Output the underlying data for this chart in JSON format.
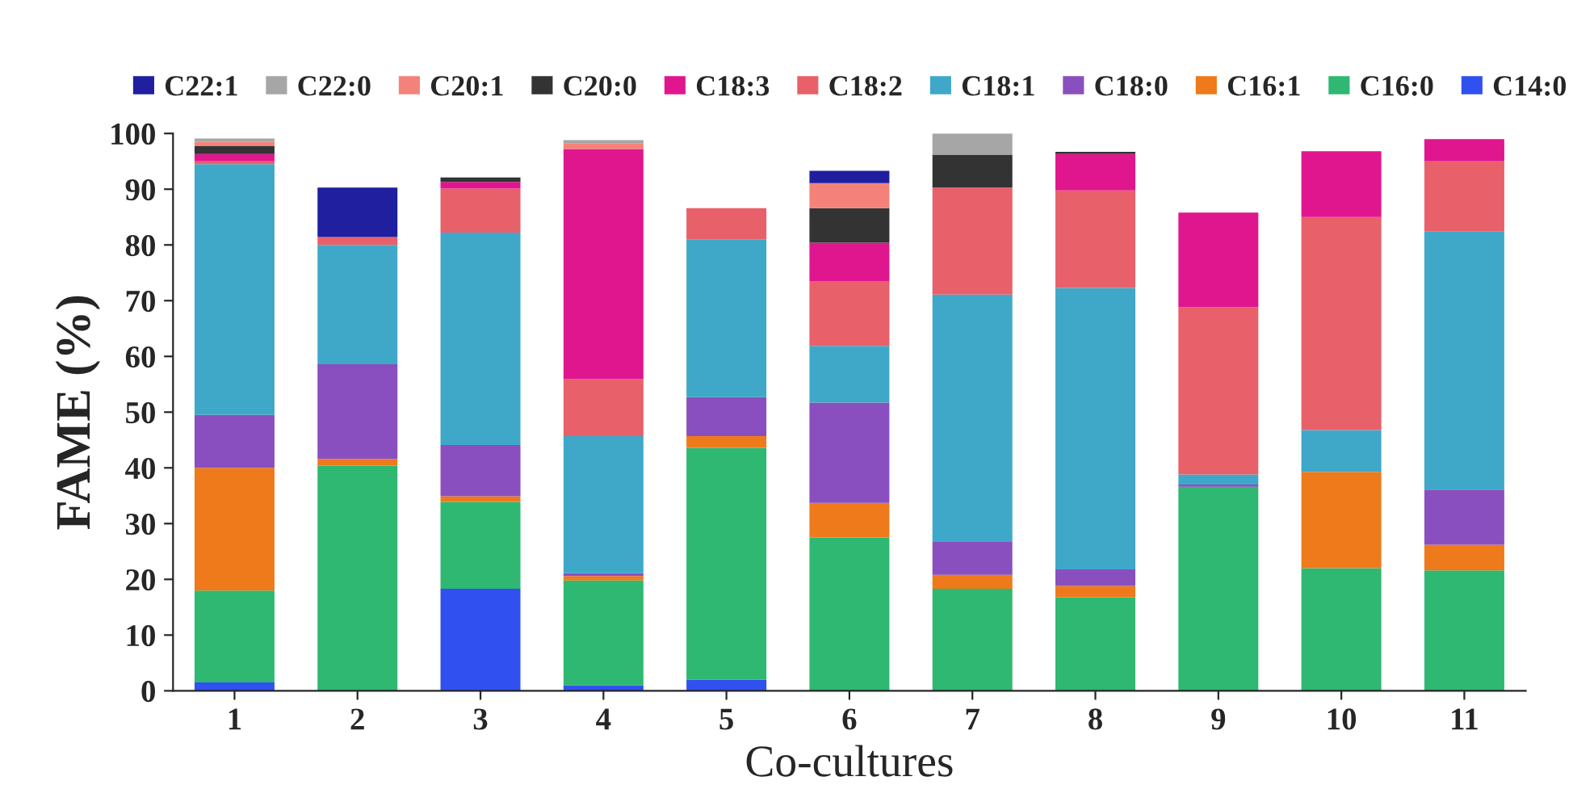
{
  "chart_data": {
    "type": "bar",
    "stacked": true,
    "xlabel": "Co-cultures",
    "ylabel": "FAME (%)",
    "categories": [
      "1",
      "2",
      "3",
      "4",
      "5",
      "6",
      "7",
      "8",
      "9",
      "10",
      "11"
    ],
    "series": [
      {
        "name": "C14:0",
        "color": "#3050f0",
        "values": [
          1.5,
          null,
          18.3,
          1,
          2,
          null,
          null,
          null,
          null,
          null,
          null
        ]
      },
      {
        "name": "C16:0",
        "color": "#2eb872",
        "values": [
          16.5,
          40.4,
          15.6,
          18.8,
          41.6,
          27.5,
          18.3,
          16.8,
          36.6,
          22,
          21.6
        ]
      },
      {
        "name": "C16:1",
        "color": "#ee7a1c",
        "values": [
          22,
          1.2,
          1,
          0.8,
          2.1,
          6.2,
          2.5,
          2,
          null,
          17.3,
          4.6
        ]
      },
      {
        "name": "C18:0",
        "color": "#8a4fbf",
        "values": [
          9.5,
          17,
          9.2,
          0.5,
          7,
          18,
          5.9,
          3,
          0.4,
          null,
          9.9
        ]
      },
      {
        "name": "C18:1",
        "color": "#3fa8c8",
        "values": [
          45,
          21.4,
          38.1,
          24.6,
          28.3,
          10.2,
          44.4,
          50.5,
          1.8,
          7.5,
          46.3
        ]
      },
      {
        "name": "C18:2",
        "color": "#e8606a",
        "values": [
          0.5,
          1.4,
          7.9,
          10.2,
          5.6,
          11.6,
          19.2,
          17.5,
          30,
          38.2,
          12.6
        ]
      },
      {
        "name": "C18:3",
        "color": "#e0168f",
        "values": [
          1.3,
          null,
          1.2,
          41.3,
          null,
          6.9,
          null,
          6.5,
          17,
          11.8,
          4
        ]
      },
      {
        "name": "C20:0",
        "color": "#333333",
        "values": [
          1.5,
          null,
          0.8,
          null,
          null,
          6.2,
          5.9,
          0.4,
          null,
          null,
          null
        ]
      },
      {
        "name": "C20:1",
        "color": "#f4827a",
        "values": [
          0.7,
          null,
          null,
          1,
          null,
          4.5,
          null,
          null,
          null,
          null,
          null
        ]
      },
      {
        "name": "C22:0",
        "color": "#a6a6a6",
        "values": [
          0.6,
          null,
          null,
          0.6,
          null,
          null,
          3.8,
          null,
          null,
          null,
          null
        ]
      },
      {
        "name": "C22:1",
        "color": "#1f1fa0",
        "values": [
          null,
          8.9,
          null,
          null,
          null,
          2.2,
          null,
          null,
          null,
          null,
          null
        ]
      }
    ],
    "ylim": [
      0,
      100
    ],
    "yticks": [
      0,
      10,
      20,
      30,
      40,
      50,
      60,
      70,
      80,
      90,
      100
    ],
    "grid": false,
    "legend": "top"
  }
}
